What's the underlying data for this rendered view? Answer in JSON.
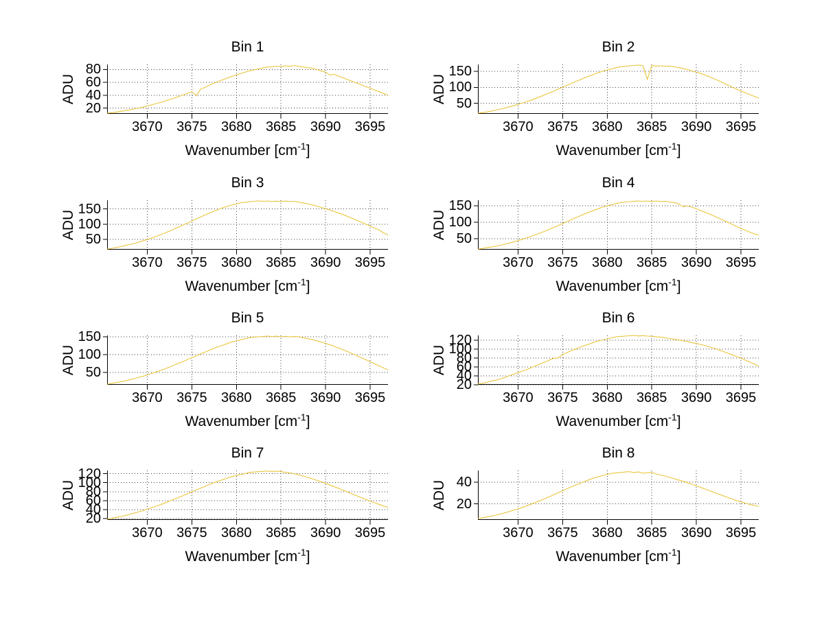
{
  "figure": {
    "background": "#ffffff",
    "line_color": "#e9c53d",
    "axis_color": "#000000",
    "grid_color": "#3a3a3a",
    "ylabel": "ADU",
    "xlabel_parts": {
      "pre": "Wavenumber [cm",
      "sup": "-1",
      "post": "]"
    },
    "xticks": [
      3670,
      3675,
      3680,
      3685,
      3690,
      3695
    ]
  },
  "chart_data": [
    {
      "type": "line",
      "title": "Bin 1",
      "xlabel": "Wavenumber [cm^-1]",
      "ylabel": "ADU",
      "xlim": [
        3665.5,
        3697
      ],
      "ylim": [
        11,
        88
      ],
      "xticks": [
        3670,
        3675,
        3680,
        3685,
        3690,
        3695
      ],
      "yticks": [
        20,
        40,
        60,
        80
      ],
      "x_start": 3665.5,
      "x_step": 0.5,
      "grid": true,
      "values": [
        12.2,
        12.8,
        13.6,
        14.9,
        16.1,
        17.2,
        18.5,
        20.0,
        21.5,
        23.3,
        25.1,
        27.0,
        28.8,
        31.0,
        33.3,
        35.5,
        37.8,
        40.4,
        43.0,
        45.6,
        39.5,
        49.5,
        52.3,
        55.9,
        59.1,
        61.7,
        64.3,
        67.0,
        69.5,
        71.7,
        74.0,
        76.1,
        78.2,
        79.7,
        81.2,
        82.6,
        84.0,
        84.4,
        85.3,
        84.7,
        86.0,
        85.1,
        86.4,
        85.0,
        84.0,
        83.1,
        82.0,
        80.4,
        78.2,
        76.0,
        71.5,
        72.5,
        69.5,
        67.0,
        64.3,
        61.7,
        59.1,
        56.4,
        53.7,
        51.0,
        48.2,
        45.5,
        42.8,
        40.3
      ]
    },
    {
      "type": "line",
      "title": "Bin 2",
      "xlabel": "Wavenumber [cm^-1]",
      "ylabel": "ADU",
      "xlim": [
        3665.5,
        3697
      ],
      "ylim": [
        17,
        172
      ],
      "xticks": [
        3670,
        3675,
        3680,
        3685,
        3690,
        3695
      ],
      "yticks": [
        50,
        100,
        150
      ],
      "x_start": 3665.5,
      "x_step": 0.5,
      "grid": true,
      "values": [
        19.3,
        20.9,
        23.1,
        25.9,
        28.8,
        31.9,
        35.3,
        38.9,
        42.5,
        46.8,
        51.3,
        55.9,
        60.5,
        65.8,
        71.3,
        76.9,
        82.5,
        88.4,
        94.5,
        100.6,
        106.7,
        112.6,
        118.7,
        124.7,
        130.7,
        135.9,
        141.0,
        146.1,
        151.2,
        154.8,
        158.3,
        161.8,
        165.1,
        166.0,
        167.5,
        168.8,
        170.0,
        168.3,
        125.0,
        168.9,
        166.5,
        167.8,
        166.2,
        167.0,
        164.8,
        162.0,
        159.5,
        156.0,
        152.0,
        148.0,
        143.5,
        138.5,
        133.0,
        127.0,
        121.0,
        114.5,
        108.0,
        101.5,
        95.0,
        89.0,
        83.0,
        77.5,
        72.0,
        66.5
      ]
    },
    {
      "type": "line",
      "title": "Bin 3",
      "xlabel": "Wavenumber [cm^-1]",
      "ylabel": "ADU",
      "xlim": [
        3665.5,
        3697
      ],
      "ylim": [
        17,
        178
      ],
      "xticks": [
        3670,
        3675,
        3680,
        3685,
        3690,
        3695
      ],
      "yticks": [
        50,
        100,
        150
      ],
      "x_start": 3665.5,
      "x_step": 0.5,
      "grid": true,
      "values": [
        19.3,
        21.5,
        24.0,
        27.0,
        30.2,
        33.5,
        36.9,
        41.2,
        45.7,
        50.2,
        54.8,
        60.3,
        66.0,
        71.8,
        77.6,
        84.0,
        90.6,
        97.2,
        103.8,
        110.5,
        117.2,
        123.9,
        130.6,
        136.5,
        142.4,
        148.3,
        154.1,
        158.2,
        162.3,
        166.3,
        170.2,
        171.8,
        173.3,
        174.7,
        176.0,
        174.6,
        175.8,
        173.9,
        175.2,
        174.0,
        175.5,
        173.8,
        174.6,
        172.0,
        169.5,
        166.5,
        163.0,
        159.0,
        155.0,
        150.5,
        146.0,
        141.0,
        136.0,
        130.5,
        125.0,
        119.0,
        113.0,
        107.0,
        100.5,
        94.0,
        87.5,
        81.0,
        72.0,
        65.0
      ]
    },
    {
      "type": "line",
      "title": "Bin 4",
      "xlabel": "Wavenumber [cm^-1]",
      "ylabel": "ADU",
      "xlim": [
        3665.5,
        3697
      ],
      "ylim": [
        16,
        167
      ],
      "xticks": [
        3670,
        3675,
        3680,
        3685,
        3690,
        3695
      ],
      "yticks": [
        50,
        100,
        150
      ],
      "x_start": 3665.5,
      "x_step": 0.5,
      "grid": true,
      "values": [
        17.7,
        19.8,
        22.0,
        24.2,
        26.5,
        29.5,
        32.7,
        36.0,
        39.5,
        43.6,
        48.0,
        52.4,
        56.8,
        61.9,
        67.2,
        72.6,
        78.1,
        83.9,
        89.9,
        95.9,
        101.9,
        107.9,
        113.8,
        119.8,
        125.7,
        131.0,
        136.2,
        141.3,
        146.2,
        149.9,
        153.5,
        157.0,
        160.1,
        161.5,
        162.8,
        164.0,
        165.0,
        163.8,
        164.9,
        163.5,
        164.6,
        163.2,
        164.0,
        162.0,
        160.0,
        157.0,
        147.0,
        150.0,
        146.0,
        141.0,
        135.5,
        130.0,
        124.5,
        118.5,
        112.5,
        106.5,
        100.0,
        93.5,
        87.0,
        81.0,
        75.0,
        69.5,
        64.5,
        60.0
      ]
    },
    {
      "type": "line",
      "title": "Bin 5",
      "xlabel": "Wavenumber [cm^-1]",
      "ylabel": "ADU",
      "xlim": [
        3665.5,
        3697
      ],
      "ylim": [
        15,
        154
      ],
      "xticks": [
        3670,
        3675,
        3680,
        3685,
        3690,
        3695
      ],
      "yticks": [
        50,
        100,
        150
      ],
      "x_start": 3665.5,
      "x_step": 0.5,
      "grid": true,
      "values": [
        16.7,
        18.9,
        21.2,
        23.5,
        25.9,
        29.0,
        32.2,
        35.4,
        38.7,
        42.8,
        47.0,
        51.1,
        55.3,
        60.2,
        65.2,
        70.2,
        75.2,
        80.5,
        85.9,
        91.3,
        96.7,
        102.0,
        107.3,
        112.5,
        117.8,
        122.3,
        126.8,
        131.3,
        135.7,
        138.8,
        141.9,
        144.9,
        147.8,
        149.0,
        150.1,
        151.0,
        152.0,
        150.6,
        151.8,
        150.2,
        151.4,
        149.8,
        151.0,
        150.0,
        147.5,
        145.0,
        142.0,
        139.0,
        135.5,
        131.5,
        127.5,
        123.0,
        118.0,
        113.0,
        108.0,
        102.5,
        97.0,
        91.5,
        86.0,
        80.0,
        74.0,
        68.0,
        62.5,
        57.0
      ]
    },
    {
      "type": "line",
      "title": "Bin 6",
      "xlabel": "Wavenumber [cm^-1]",
      "ylabel": "ADU",
      "xlim": [
        3665.5,
        3697
      ],
      "ylim": [
        20,
        131
      ],
      "xticks": [
        3670,
        3675,
        3680,
        3685,
        3690,
        3695
      ],
      "yticks": [
        20,
        40,
        60,
        80,
        100,
        120
      ],
      "x_start": 3665.5,
      "x_step": 0.5,
      "grid": true,
      "values": [
        21.9,
        23.5,
        25.3,
        28.7,
        30.3,
        33.0,
        36.5,
        40.2,
        43.7,
        47.3,
        50.9,
        54.5,
        58.6,
        62.7,
        66.9,
        71.0,
        75.3,
        79.6,
        80.0,
        88.3,
        92.5,
        96.6,
        100.8,
        104.9,
        108.3,
        111.8,
        115.2,
        118.6,
        121.0,
        123.3,
        125.6,
        127.8,
        128.6,
        129.4,
        130.2,
        131.0,
        129.8,
        130.6,
        129.4,
        129.0,
        128.0,
        127.0,
        125.5,
        124.0,
        122.5,
        120.8,
        119.0,
        117.0,
        115.0,
        112.8,
        110.5,
        108.0,
        105.0,
        101.8,
        98.5,
        95.0,
        91.3,
        87.5,
        83.8,
        80.0,
        75.5,
        71.0,
        66.5,
        62.0
      ]
    },
    {
      "type": "line",
      "title": "Bin 7",
      "xlabel": "Wavenumber [cm^-1]",
      "ylabel": "ADU",
      "xlim": [
        3665.5,
        3697
      ],
      "ylim": [
        17,
        127
      ],
      "xticks": [
        3670,
        3675,
        3680,
        3685,
        3690,
        3695
      ],
      "yticks": [
        20,
        40,
        60,
        80,
        100,
        120
      ],
      "x_start": 3665.5,
      "x_step": 0.5,
      "grid": true,
      "values": [
        18.7,
        20.6,
        22.6,
        24.6,
        26.7,
        29.3,
        32.0,
        34.7,
        37.4,
        40.8,
        44.2,
        47.6,
        51.0,
        54.9,
        58.9,
        62.8,
        66.8,
        71.0,
        75.2,
        79.5,
        83.7,
        87.8,
        91.9,
        96.0,
        100.0,
        103.4,
        106.8,
        110.3,
        113.7,
        116.0,
        118.3,
        120.5,
        122.8,
        123.6,
        124.5,
        125.2,
        126.0,
        124.8,
        125.7,
        124.4,
        123.1,
        121.8,
        119.5,
        117.2,
        114.7,
        111.7,
        108.6,
        105.4,
        102.1,
        98.4,
        94.6,
        90.8,
        86.9,
        82.9,
        78.9,
        74.8,
        70.7,
        66.8,
        62.9,
        59.0,
        55.2,
        51.7,
        48.2,
        44.8
      ]
    },
    {
      "type": "line",
      "title": "Bin 8",
      "xlabel": "Wavenumber [cm^-1]",
      "ylabel": "ADU",
      "xlim": [
        3665.5,
        3697
      ],
      "ylim": [
        5,
        51
      ],
      "xticks": [
        3670,
        3675,
        3680,
        3685,
        3690,
        3695
      ],
      "yticks": [
        20,
        40
      ],
      "x_start": 3665.5,
      "x_step": 0.5,
      "grid": true,
      "values": [
        6.4,
        7.0,
        7.8,
        8.6,
        9.5,
        10.5,
        11.5,
        12.7,
        14.0,
        15.3,
        16.6,
        18.2,
        19.8,
        21.4,
        23.0,
        24.8,
        26.6,
        28.5,
        30.3,
        32.1,
        34.0,
        35.8,
        37.6,
        39.2,
        40.9,
        42.5,
        44.1,
        45.2,
        46.3,
        47.4,
        48.4,
        48.8,
        49.2,
        49.6,
        50.0,
        49.0,
        49.8,
        48.6,
        48.9,
        49.4,
        47.8,
        46.8,
        45.8,
        44.6,
        43.4,
        42.2,
        41.0,
        39.6,
        38.2,
        36.7,
        35.2,
        33.7,
        32.1,
        30.6,
        29.0,
        27.5,
        26.0,
        24.5,
        23.0,
        21.8,
        20.6,
        19.5,
        18.5,
        17.5
      ]
    }
  ]
}
